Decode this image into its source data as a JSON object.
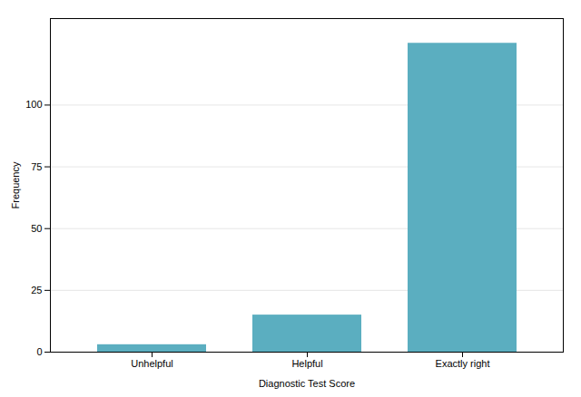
{
  "chart_data": {
    "type": "bar",
    "categories": [
      "Unhelpful",
      "Helpful",
      "Exactly right"
    ],
    "values": [
      3,
      15,
      125
    ],
    "color": "#5BAEC0",
    "xlabel": "Diagnostic Test Score",
    "ylabel": "Frequency",
    "ylim": [
      0,
      135
    ],
    "yticks": [
      0,
      25,
      50,
      75,
      100
    ],
    "grid": true
  }
}
